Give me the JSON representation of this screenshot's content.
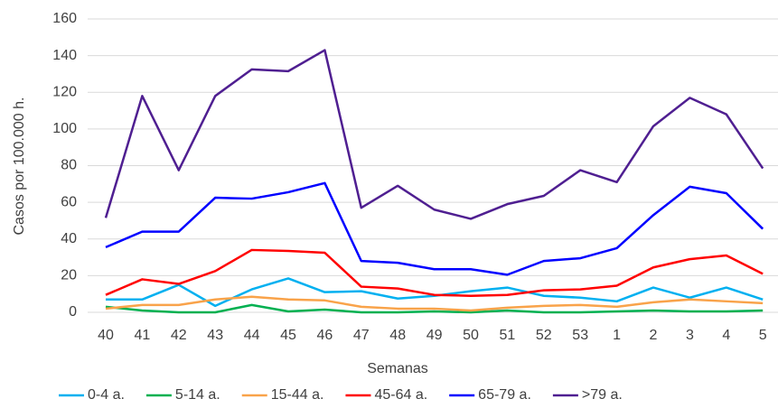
{
  "chart_data": {
    "type": "line",
    "categories": [
      "40",
      "41",
      "42",
      "43",
      "44",
      "45",
      "46",
      "47",
      "48",
      "49",
      "50",
      "51",
      "52",
      "53",
      "1",
      "2",
      "3",
      "4",
      "5"
    ],
    "x_label": "Semanas",
    "y_label": "Casos por 100.000 h.",
    "ylim": [
      0,
      160
    ],
    "yticks": [
      0,
      20,
      40,
      60,
      80,
      100,
      120,
      140,
      160
    ],
    "grid": true,
    "legend": "bottom",
    "series": [
      {
        "name": "0-4 a.",
        "color": "#00b0f0",
        "values": [
          7,
          7,
          15,
          3.5,
          12.5,
          18.5,
          11,
          11.5,
          7.5,
          9,
          11.5,
          13.5,
          9,
          8,
          6,
          13.5,
          8,
          13.5,
          7
        ]
      },
      {
        "name": "5-14 a.",
        "color": "#00b050",
        "values": [
          3,
          1,
          0,
          0,
          4,
          0.5,
          1.5,
          0,
          0,
          0.5,
          0,
          1,
          0,
          0,
          0.5,
          1,
          0.5,
          0.5,
          1
        ]
      },
      {
        "name": "15-44 a.",
        "color": "#f9a34a",
        "values": [
          2,
          4,
          4,
          7,
          8.5,
          7,
          6.5,
          3,
          2,
          2,
          1,
          2.5,
          3.5,
          4,
          3,
          5.5,
          7,
          6,
          5
        ]
      },
      {
        "name": "45-64 a.",
        "color": "#ff0000",
        "values": [
          9.5,
          18,
          15.5,
          22.5,
          34,
          33.5,
          32.5,
          14,
          13,
          9.5,
          9,
          9.5,
          12,
          12.5,
          14.5,
          24.5,
          29,
          31,
          21
        ]
      },
      {
        "name": "65-79 a.",
        "color": "#0000ff",
        "values": [
          35.5,
          44,
          44,
          62.5,
          62,
          65.5,
          70.5,
          28,
          27,
          23.5,
          23.5,
          20.5,
          28,
          29.5,
          35,
          53,
          68.5,
          65,
          45.5
        ]
      },
      {
        "name": ">79 a.",
        "color": "#4f1f91",
        "values": [
          51.5,
          118,
          77.5,
          118,
          132.5,
          131.5,
          143,
          57,
          69,
          56,
          51,
          59,
          63.5,
          77.5,
          71,
          101.5,
          117,
          108,
          78.5
        ]
      }
    ]
  }
}
